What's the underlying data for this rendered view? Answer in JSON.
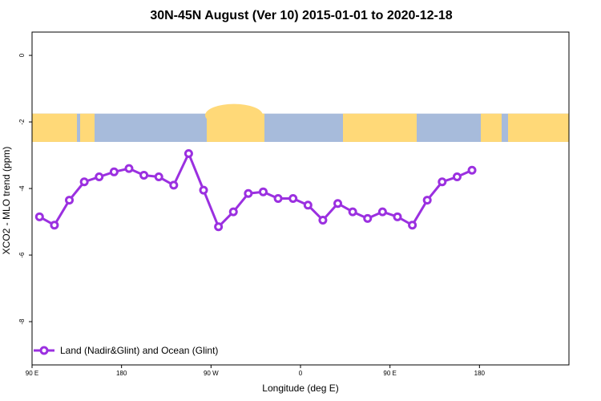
{
  "chart_data": {
    "type": "line",
    "title": "30N-45N August (Ver 10)   2015-01-01 to 2020-12-18",
    "xlabel": "Longitude (deg E)",
    "ylabel": "XCO2 - MLO trend (ppm)",
    "xlim": [
      -90,
      180
    ],
    "ylim": [
      -9.3,
      0.7
    ],
    "x_ticks": [
      {
        "value": -90,
        "label": "90 E"
      },
      {
        "value": -45,
        "label": "180"
      },
      {
        "value": 0,
        "label": "90 W"
      },
      {
        "value": 45,
        "label": "0"
      },
      {
        "value": 90,
        "label": "90 E"
      },
      {
        "value": 135,
        "label": "180"
      }
    ],
    "y_ticks": [
      {
        "value": 0,
        "label": "0"
      },
      {
        "value": -2,
        "label": "-2"
      },
      {
        "value": -4,
        "label": "-4"
      },
      {
        "value": -6,
        "label": "-6"
      },
      {
        "value": -8,
        "label": "-8"
      }
    ],
    "grid": false,
    "legend_position": "bottom-left",
    "map_strip": {
      "y_top": -1.75,
      "y_bottom": -2.6,
      "ocean_color": "#a7bbdb",
      "land_color": "#ffd978"
    },
    "series": [
      {
        "name": "Land (Nadir&Glint) and Ocean (Glint)",
        "color": "#9b30e0",
        "x": [
          -86.25,
          -78.75,
          -71.25,
          -63.75,
          -56.25,
          -48.75,
          -41.25,
          -33.75,
          -26.25,
          -18.75,
          -11.25,
          -3.75,
          3.75,
          11.25,
          18.75,
          26.25,
          33.75,
          41.25,
          48.75,
          56.25,
          63.75,
          71.25,
          78.75,
          86.25,
          93.75,
          101.25,
          108.75,
          116.25,
          123.75,
          131.25
        ],
        "y": [
          -4.85,
          -5.1,
          -4.35,
          -3.8,
          -3.65,
          -3.5,
          -3.4,
          -3.6,
          -3.65,
          -3.9,
          -2.95,
          -4.05,
          -5.15,
          -4.7,
          -4.15,
          -4.1,
          -4.3,
          -4.3,
          -4.5,
          -4.95,
          -4.45,
          -4.7,
          -4.9,
          -4.7,
          -4.85,
          -5.1,
          -4.35,
          -3.8,
          -3.65,
          -3.45
        ]
      }
    ]
  }
}
